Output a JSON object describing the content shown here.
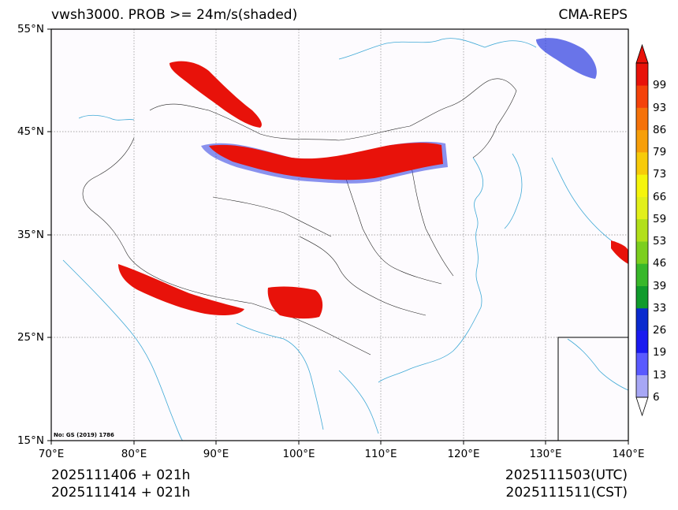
{
  "header": {
    "title_left": "vwsh3000. PROB >= 24m/s(shaded)",
    "title_right": "CMA-REPS"
  },
  "map": {
    "lat_labels": [
      "55°N",
      "45°N",
      "35°N",
      "25°N",
      "15°N"
    ],
    "lon_labels": [
      "70°E",
      "80°E",
      "90°E",
      "100°E",
      "110°E",
      "120°E",
      "130°E",
      "140°E"
    ],
    "review_number": "No: GS (2019) 1786",
    "colors": {
      "border": "#000000",
      "coast": "#3fa9d6",
      "grid": "#8a8a8a",
      "background": "#fdfbfe"
    }
  },
  "colorbar": {
    "levels": [
      "6",
      "13",
      "19",
      "26",
      "33",
      "39",
      "46",
      "53",
      "59",
      "66",
      "73",
      "79",
      "86",
      "93",
      "99"
    ],
    "colors": [
      "#a7a7f5",
      "#5a5aff",
      "#1a1af0",
      "#0a2acf",
      "#109b2c",
      "#38b82a",
      "#7ccf1e",
      "#b2e01a",
      "#e2f01a",
      "#f5f50c",
      "#f7cb0a",
      "#f79f0a",
      "#f5720a",
      "#f4420a",
      "#e8120a"
    ]
  },
  "footer": {
    "init_utc": "2025111406  +  021h",
    "init_cst": "2025111414  +  021h",
    "valid_utc": "2025111503(UTC)",
    "valid_cst": "2025111511(CST)"
  }
}
